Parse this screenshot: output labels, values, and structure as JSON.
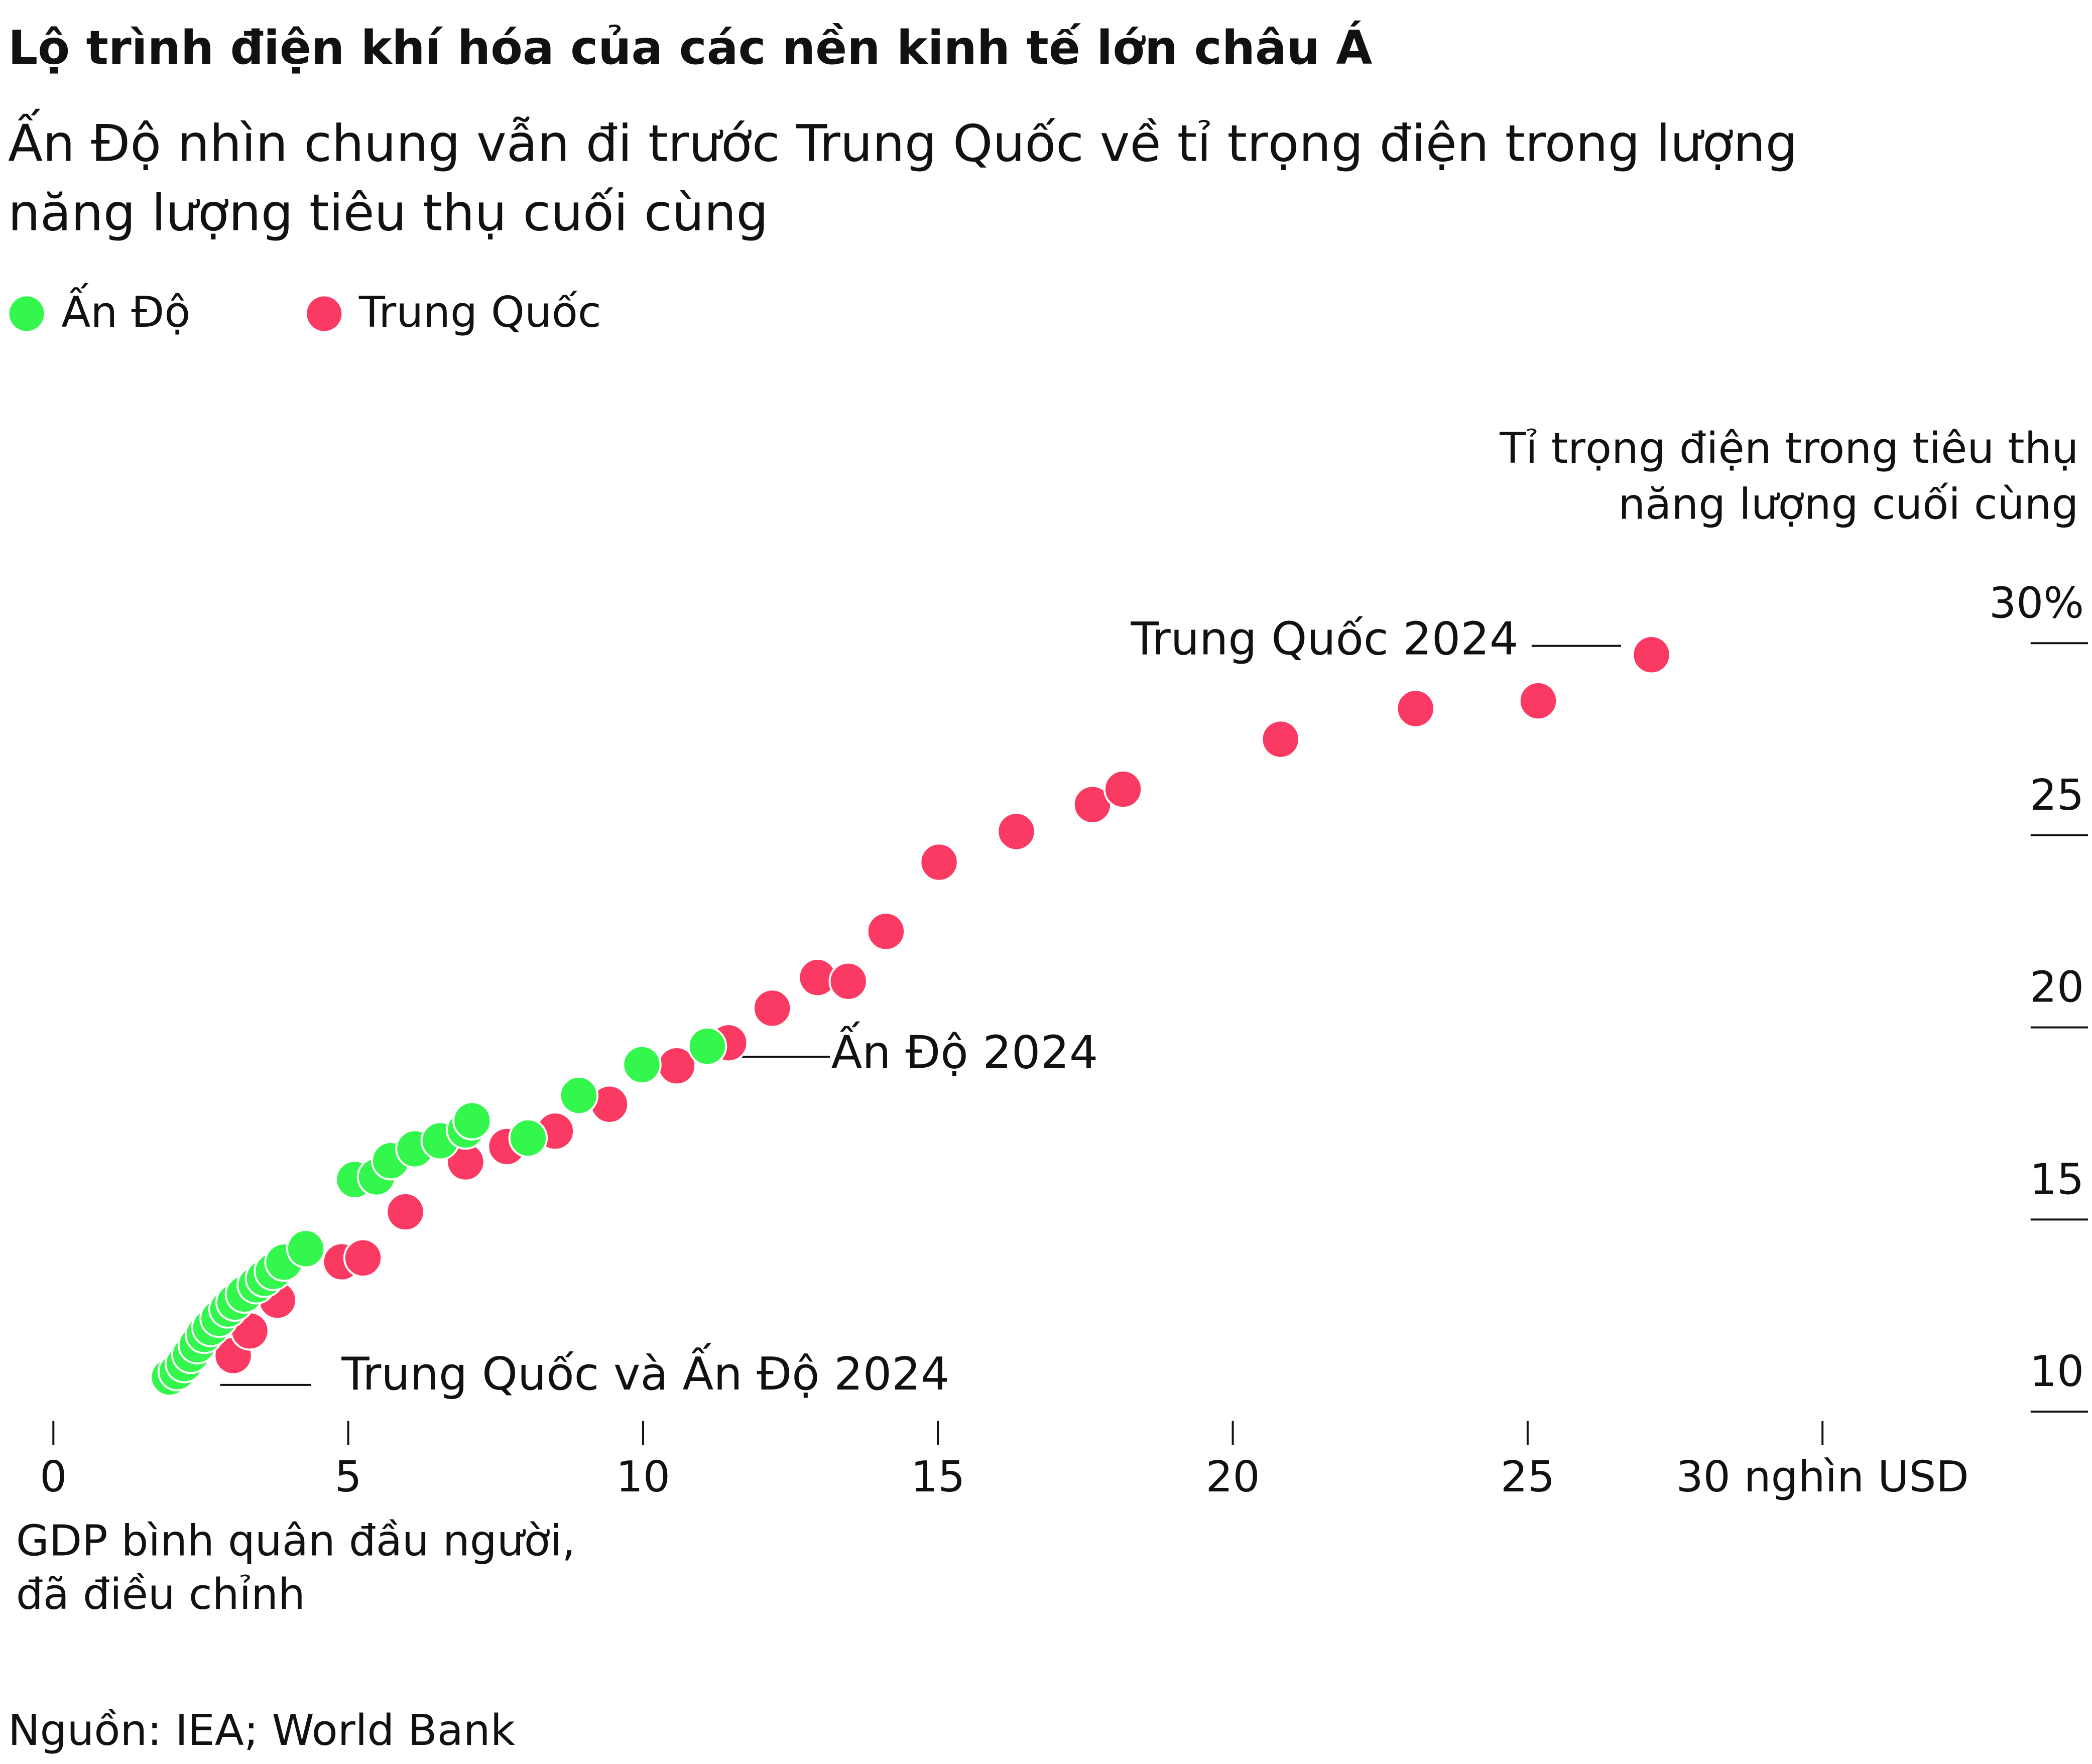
{
  "chart_data": {
    "type": "scatter",
    "title": "Lộ trình điện khí hóa của các nền kinh tế lớn châu Á",
    "subtitle": [
      "Ấn Độ nhìn chung vẫn đi trước Trung Quốc về tỉ trọng điện trong lượng",
      "năng lượng tiêu thụ cuối cùng"
    ],
    "y_label": [
      "Tỉ trọng điện trong tiêu thụ",
      "năng lượng cuối cùng"
    ],
    "x_label": [
      "GDP bình quân đầu người,",
      "đã điều chỉnh"
    ],
    "source": "Nguồn: IEA; World Bank",
    "annotations": [
      "Trung Quốc 2024",
      "Ấn Độ 2024",
      "Trung Quốc và Ấn Độ 2024"
    ],
    "xlim": [
      0,
      30
    ],
    "ylim": [
      10,
      30
    ],
    "xticks": [
      0,
      5,
      10,
      15,
      20,
      25,
      {
        "value": 30,
        "label": "30 nghìn USD"
      }
    ],
    "yticks": [
      {
        "value": 30,
        "label": "30%"
      },
      25,
      20,
      15,
      10
    ],
    "series": [
      {
        "name": "Ấn Độ",
        "color": "#33f74d",
        "x": [
          1.97,
          2.1,
          2.22,
          2.33,
          2.44,
          2.56,
          2.67,
          2.81,
          2.96,
          3.08,
          3.24,
          3.44,
          3.58,
          3.73,
          3.91,
          4.28,
          5.11,
          5.48,
          5.72,
          6.13,
          6.56,
          6.99,
          7.1,
          8.05,
          8.91,
          9.98,
          11.09
        ],
        "values": [
          10.9,
          11.04,
          11.25,
          11.49,
          11.74,
          12.01,
          12.19,
          12.43,
          12.67,
          12.85,
          13.06,
          13.3,
          13.47,
          13.65,
          13.89,
          14.24,
          16.04,
          16.11,
          16.53,
          16.84,
          17.05,
          17.33,
          17.57,
          17.12,
          18.23,
          19.03,
          19.51
        ]
      },
      {
        "name": "Trung Quốc",
        "color": "#fa3a63",
        "x": [
          3.05,
          3.33,
          3.8,
          4.89,
          5.25,
          5.97,
          6.99,
          7.69,
          8.51,
          9.43,
          10.57,
          11.45,
          12.19,
          12.96,
          13.48,
          14.12,
          15.02,
          16.33,
          17.62,
          18.14,
          20.81,
          23.1,
          25.18,
          27.1
        ],
        "values": [
          11.46,
          12.1,
          12.9,
          13.9,
          14.0,
          15.2,
          16.5,
          16.9,
          17.3,
          18.0,
          19.0,
          19.6,
          20.5,
          21.3,
          21.2,
          22.5,
          24.3,
          25.1,
          25.8,
          26.2,
          27.5,
          28.3,
          28.5,
          29.7
        ]
      }
    ]
  }
}
